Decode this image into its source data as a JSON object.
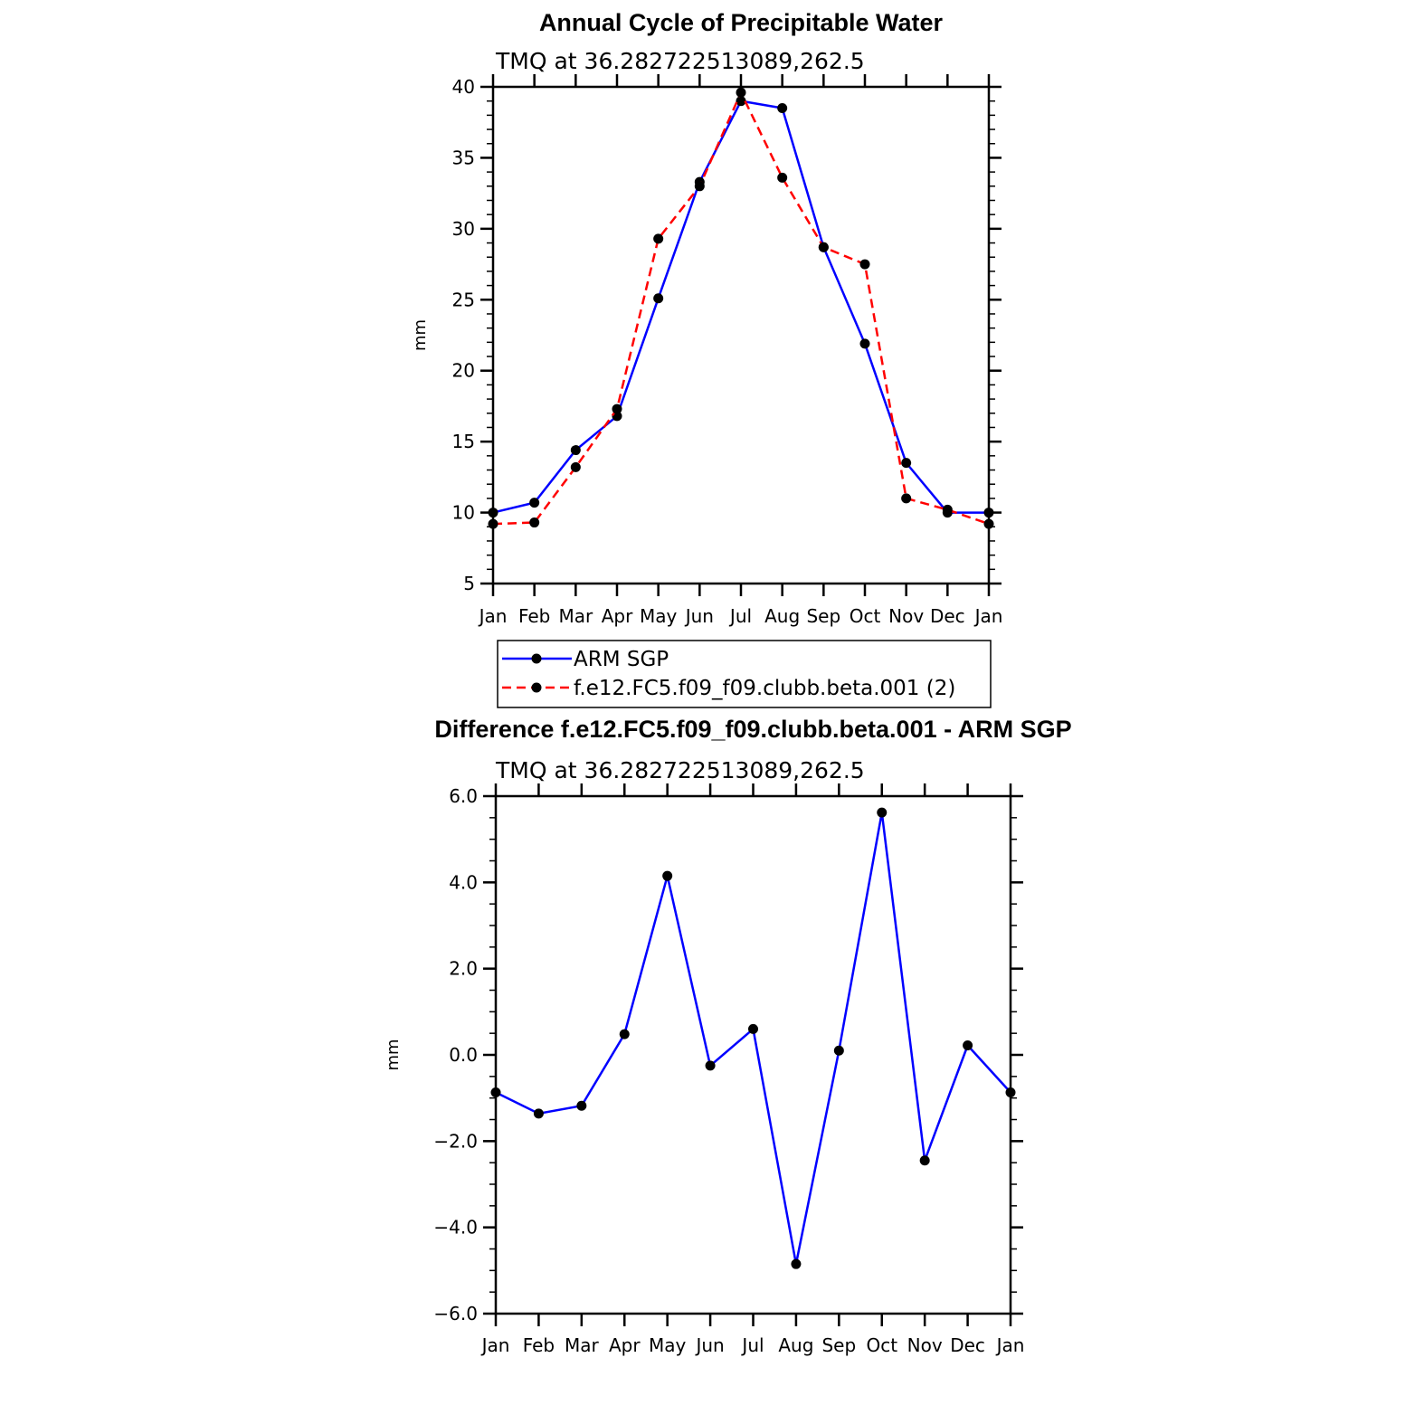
{
  "chart_data": [
    {
      "type": "line",
      "title": "Annual Cycle of Precipitable Water",
      "subtitle": "TMQ at 36.282722513089,262.5",
      "ylabel": "mm",
      "xlabel": "",
      "ylim": [
        5,
        40
      ],
      "yticks": [
        5,
        10,
        15,
        20,
        25,
        30,
        35,
        40
      ],
      "ytick_labels": [
        "5",
        "10",
        "15",
        "20",
        "25",
        "30",
        "35",
        "40"
      ],
      "categories": [
        "Jan",
        "Feb",
        "Mar",
        "Apr",
        "May",
        "Jun",
        "Jul",
        "Aug",
        "Sep",
        "Oct",
        "Nov",
        "Dec",
        "Jan"
      ],
      "grid": false,
      "legend_position": "bottom",
      "series": [
        {
          "name": "ARM SGP",
          "color": "#0000ff",
          "dash": "solid",
          "values": [
            10.0,
            10.7,
            14.4,
            16.8,
            25.1,
            33.3,
            39.0,
            38.5,
            28.7,
            21.9,
            13.5,
            10.0,
            10.0
          ]
        },
        {
          "name": "f.e12.FC5.f09_f09.clubb.beta.001 (2)",
          "color": "#ff0000",
          "dash": "dashed",
          "values": [
            9.2,
            9.3,
            13.2,
            17.3,
            29.3,
            33.0,
            39.6,
            33.6,
            28.7,
            27.5,
            11.0,
            10.2,
            9.2
          ]
        }
      ]
    },
    {
      "type": "line",
      "title": "Difference f.e12.FC5.f09_f09.clubb.beta.001 - ARM SGP",
      "subtitle": "TMQ at 36.282722513089,262.5",
      "ylabel": "mm",
      "xlabel": "",
      "ylim": [
        -6.0,
        6.0
      ],
      "yticks": [
        -6,
        -4,
        -2,
        0,
        2,
        4,
        6
      ],
      "ytick_labels": [
        "−6.0",
        "−4.0",
        "−2.0",
        "0.0",
        "2.0",
        "4.0",
        "6.0"
      ],
      "categories": [
        "Jan",
        "Feb",
        "Mar",
        "Apr",
        "May",
        "Jun",
        "Jul",
        "Aug",
        "Sep",
        "Oct",
        "Nov",
        "Dec",
        "Jan"
      ],
      "grid": false,
      "series": [
        {
          "color": "#0000ff",
          "dash": "solid",
          "values": [
            -0.87,
            -1.36,
            -1.18,
            0.48,
            4.15,
            -0.25,
            0.6,
            -4.85,
            0.1,
            5.62,
            -2.45,
            0.22,
            -0.87
          ]
        }
      ]
    }
  ]
}
